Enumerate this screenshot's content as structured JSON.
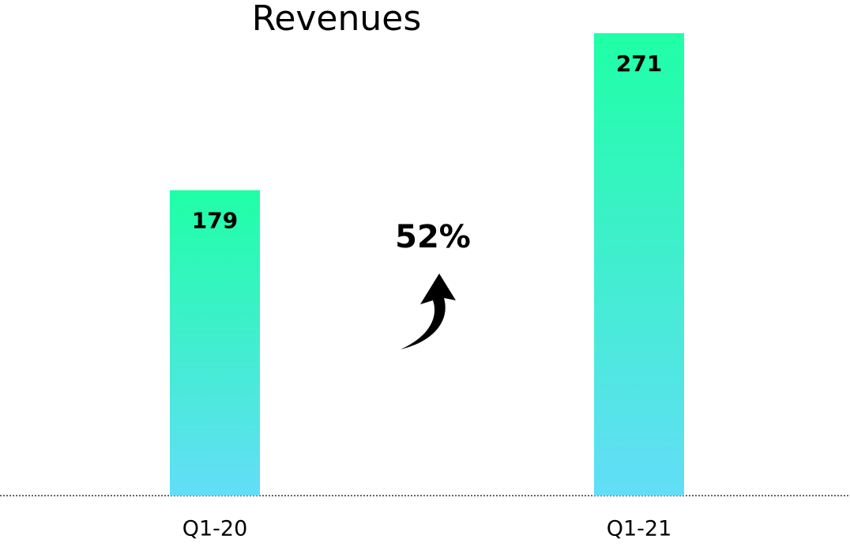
{
  "chart_data": {
    "type": "bar",
    "title": "Revenues",
    "categories": [
      "Q1-20",
      "Q1-21"
    ],
    "values": [
      179,
      271
    ],
    "color_top": "#1fffa6",
    "color_bottom": "#63ddf8",
    "annotation": "52%"
  }
}
